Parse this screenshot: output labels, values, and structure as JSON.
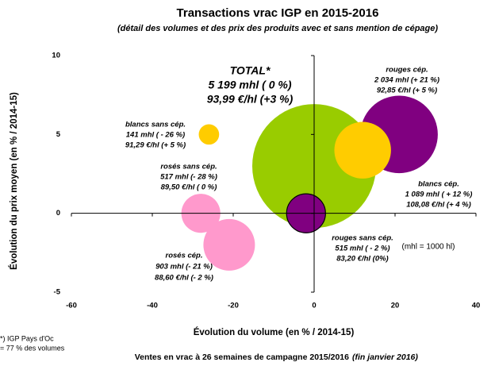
{
  "chart_data": {
    "type": "bubble",
    "title": "Transactions vrac IGP en 2015-2016",
    "subtitle": "(détail des volumes et des prix des produits avec et sans mention de cépage)",
    "x_label": "Évolution du volume (en % / 2014-15)",
    "y_label": "Évolution du prix moyen (en % / 2014-15)",
    "xlim": [
      -60,
      40
    ],
    "xticks": [
      -60,
      -40,
      -20,
      0,
      20,
      40
    ],
    "ylim": [
      -5,
      10
    ],
    "yticks": [
      -5,
      0,
      5,
      10
    ],
    "series": [
      {
        "name": "TOTAL*",
        "color": "#99cc00",
        "x": 0,
        "y": 3,
        "size": 5199,
        "labels": [
          "5 199 mhl ( 0 %)",
          "93,99 €/hl (+3 %)"
        ]
      },
      {
        "name": "rouges cép.",
        "color": "#800080",
        "x": 21,
        "y": 5,
        "size": 2034,
        "labels": [
          "2 034 mhl (+ 21 %)",
          "92,85 €/hl (+ 5 %)"
        ]
      },
      {
        "name": "blancs cép.",
        "color": "#ffcc00",
        "x": 12,
        "y": 4,
        "size": 1089,
        "labels": [
          "1 089 mhl ( + 12 %)",
          "108,08 €/hl (+ 4 %)"
        ]
      },
      {
        "name": "blancs sans cép.",
        "color": "#ffcc00",
        "x": -26,
        "y": 5,
        "size": 141,
        "labels": [
          "141 mhl ( - 26 %)",
          "91,29 €/hl (+ 5 %)"
        ]
      },
      {
        "name": "rosés sans cép.",
        "color": "#ff99cc",
        "x": -28,
        "y": 0,
        "size": 517,
        "labels": [
          "517 mhl (- 28 %)",
          "89,50 €/hl ( 0 %)"
        ]
      },
      {
        "name": "rosés cép.",
        "color": "#ff99cc",
        "x": -21,
        "y": -2,
        "size": 903,
        "labels": [
          "903 mhl (- 21 %)",
          "88,60 €/hl (- 2 %)"
        ]
      },
      {
        "name": "rouges sans cép.",
        "color": "#800080",
        "outline": "#000000",
        "x": -2,
        "y": 0,
        "size": 515,
        "labels": [
          "515 mhl ( - 2 %)",
          "83,20 €/hl (0%)"
        ]
      }
    ],
    "note": "(mhl = 1000 hl)",
    "footnote": [
      "*) IGP Pays d'Oc",
      "= 77 % des volumes"
    ],
    "source": "Ventes en vrac à 26 semaines de campagne 2015/2016",
    "source_italic": "(fin janvier 2016)"
  }
}
